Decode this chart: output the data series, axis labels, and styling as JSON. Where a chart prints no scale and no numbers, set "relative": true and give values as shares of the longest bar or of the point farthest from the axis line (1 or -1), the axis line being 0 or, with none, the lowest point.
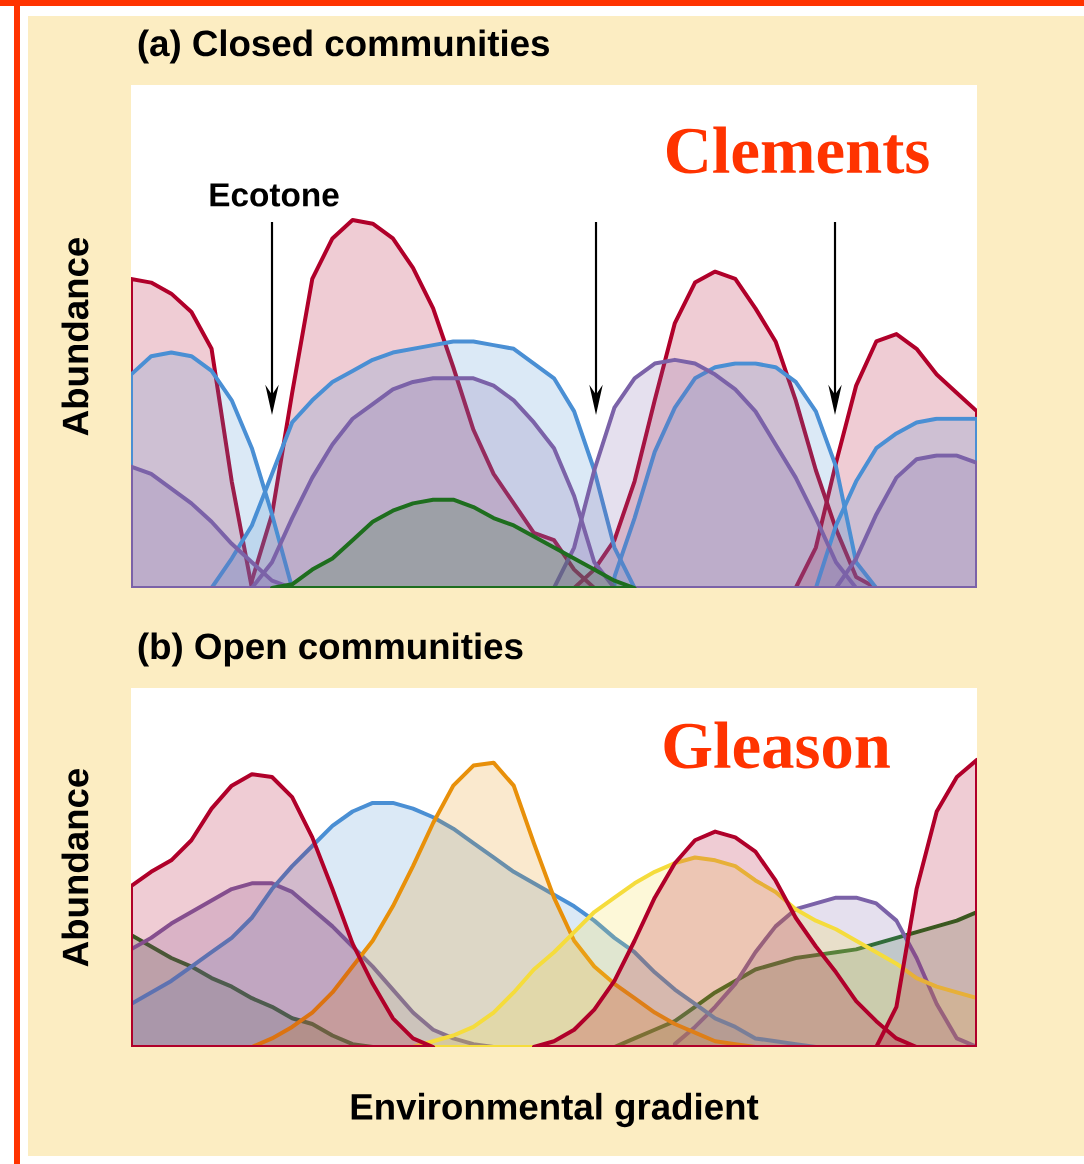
{
  "chart_data": [
    {
      "type": "area",
      "title": "(a) Closed communities",
      "ylabel": "Abundance",
      "relative": true,
      "annotations": [
        "Clements",
        "Ecotone"
      ],
      "categories": [
        null,
        null,
        null,
        null,
        null,
        null,
        null,
        null,
        null,
        null,
        null,
        null,
        null,
        null,
        null,
        null,
        null,
        null,
        null,
        null,
        null,
        null,
        null,
        null,
        null,
        null,
        null,
        null,
        null,
        null,
        null,
        null,
        null,
        null,
        null,
        null,
        null,
        null,
        null,
        null,
        null,
        null,
        null
      ],
      "series": [
        {
          "color": "#b0002a",
          "values": [
            0.84,
            0.83,
            0.8,
            0.75,
            0.65,
            0.29,
            0,
            null,
            null,
            null,
            null,
            null,
            null,
            null,
            null,
            null,
            null,
            null,
            null,
            null,
            null,
            null,
            null,
            null,
            null,
            null,
            null,
            null,
            null,
            null,
            null,
            null,
            null,
            null,
            null,
            null,
            null,
            null,
            null,
            null,
            null,
            null,
            null
          ]
        },
        {
          "color": "#b0002a",
          "values": [
            null,
            null,
            null,
            null,
            null,
            null,
            0.02,
            0.2,
            0.53,
            0.84,
            0.95,
            1,
            0.99,
            0.95,
            0.87,
            0.76,
            0.6,
            0.43,
            0.31,
            0.23,
            0.15,
            0.13,
            0.05,
            0,
            null,
            null,
            null,
            null,
            null,
            null,
            null,
            null,
            null,
            null,
            null,
            null,
            null,
            null,
            null,
            null,
            null,
            null,
            null
          ]
        },
        {
          "color": "#b0002a",
          "values": [
            null,
            null,
            null,
            null,
            null,
            null,
            null,
            null,
            null,
            null,
            null,
            null,
            null,
            null,
            null,
            null,
            null,
            null,
            null,
            null,
            null,
            null,
            0,
            0.05,
            0.13,
            0.29,
            0.51,
            0.72,
            0.83,
            0.86,
            0.84,
            0.76,
            0.67,
            0.51,
            0.32,
            0.16,
            0.03,
            0,
            null,
            null,
            null,
            null,
            null
          ]
        },
        {
          "color": "#b0002a",
          "values": [
            null,
            null,
            null,
            null,
            null,
            null,
            null,
            null,
            null,
            null,
            null,
            null,
            null,
            null,
            null,
            null,
            null,
            null,
            null,
            null,
            null,
            null,
            null,
            null,
            null,
            null,
            null,
            null,
            null,
            null,
            null,
            null,
            null,
            0,
            0.11,
            0.34,
            0.55,
            0.67,
            0.69,
            0.65,
            0.58,
            0.53,
            0.48
          ]
        },
        {
          "color": "#4a8fd4",
          "values": [
            0.58,
            0.63,
            0.64,
            0.63,
            0.59,
            0.51,
            0.38,
            0.2,
            0,
            null,
            null,
            null,
            null,
            null,
            null,
            null,
            null,
            null,
            null,
            null,
            null,
            null,
            null,
            null,
            null,
            null,
            null,
            null,
            null,
            null,
            null,
            null,
            null,
            null,
            null,
            null,
            null,
            null,
            null,
            null,
            null,
            null,
            null
          ]
        },
        {
          "color": "#4a8fd4",
          "values": [
            null,
            null,
            null,
            null,
            0,
            0.08,
            0.17,
            0.31,
            0.45,
            0.51,
            0.56,
            0.59,
            0.62,
            0.64,
            0.65,
            0.66,
            0.67,
            0.67,
            0.66,
            0.65,
            0.61,
            0.57,
            0.48,
            0.32,
            0.11,
            0,
            null,
            null,
            null,
            null,
            null,
            null,
            null,
            null,
            null,
            null,
            null,
            null,
            null,
            null,
            null,
            null,
            null
          ]
        },
        {
          "color": "#4a8fd4",
          "values": [
            null,
            null,
            null,
            null,
            null,
            null,
            null,
            null,
            null,
            null,
            null,
            null,
            null,
            null,
            null,
            null,
            null,
            null,
            null,
            null,
            null,
            null,
            null,
            null,
            0.03,
            0.19,
            0.37,
            0.49,
            0.57,
            0.6,
            0.61,
            0.61,
            0.6,
            0.56,
            0.48,
            0.33,
            0.07,
            0,
            null,
            null,
            null,
            null,
            null
          ]
        },
        {
          "color": "#4a8fd4",
          "values": [
            null,
            null,
            null,
            null,
            null,
            null,
            null,
            null,
            null,
            null,
            null,
            null,
            null,
            null,
            null,
            null,
            null,
            null,
            null,
            null,
            null,
            null,
            null,
            null,
            null,
            null,
            null,
            null,
            null,
            null,
            null,
            null,
            null,
            null,
            0,
            0.17,
            0.29,
            0.38,
            0.42,
            0.45,
            0.46,
            0.46,
            0.46
          ]
        },
        {
          "color": "#7b62a8",
          "values": [
            0.33,
            0.31,
            0.27,
            0.23,
            0.18,
            0.12,
            0.07,
            0.02,
            0,
            null,
            null,
            null,
            null,
            null,
            null,
            null,
            null,
            null,
            null,
            null,
            null,
            null,
            null,
            null,
            null,
            null,
            null,
            null,
            null,
            null,
            null,
            null,
            null,
            null,
            null,
            null,
            null,
            null,
            null,
            null,
            null,
            null,
            null
          ]
        },
        {
          "color": "#7b62a8",
          "values": [
            null,
            null,
            null,
            null,
            null,
            null,
            0,
            0.07,
            0.19,
            0.3,
            0.39,
            0.46,
            0.5,
            0.54,
            0.56,
            0.57,
            0.57,
            0.57,
            0.55,
            0.51,
            0.45,
            0.38,
            0.25,
            0.07,
            0,
            null,
            null,
            null,
            null,
            null,
            null,
            null,
            null,
            null,
            null,
            null,
            null,
            null,
            null,
            null,
            null,
            null,
            null
          ]
        },
        {
          "color": "#7b62a8",
          "values": [
            null,
            null,
            null,
            null,
            null,
            null,
            null,
            null,
            null,
            null,
            null,
            null,
            null,
            null,
            null,
            null,
            null,
            null,
            null,
            null,
            null,
            0,
            0.11,
            0.32,
            0.49,
            0.57,
            0.61,
            0.62,
            0.61,
            0.58,
            0.54,
            0.48,
            0.39,
            0.3,
            0.19,
            0.07,
            0,
            null,
            null,
            null,
            null,
            null,
            null
          ]
        },
        {
          "color": "#7b62a8",
          "values": [
            null,
            null,
            null,
            null,
            null,
            null,
            null,
            null,
            null,
            null,
            null,
            null,
            null,
            null,
            null,
            null,
            null,
            null,
            null,
            null,
            null,
            null,
            null,
            null,
            null,
            null,
            null,
            null,
            null,
            null,
            null,
            null,
            null,
            null,
            null,
            0,
            0.08,
            0.2,
            0.3,
            0.35,
            0.36,
            0.36,
            0.34
          ]
        },
        {
          "color": "#1e6e1e",
          "values": [
            null,
            null,
            null,
            null,
            null,
            null,
            null,
            0,
            0.01,
            0.05,
            0.08,
            0.13,
            0.18,
            0.21,
            0.23,
            0.24,
            0.24,
            0.22,
            0.19,
            0.17,
            0.14,
            0.11,
            0.08,
            0.05,
            0.02,
            0,
            null,
            null,
            null,
            null,
            null,
            null,
            null,
            null,
            null,
            null,
            null,
            null,
            null,
            null,
            null,
            null,
            null
          ]
        }
      ]
    },
    {
      "type": "area",
      "title": "(b) Open communities",
      "ylabel": "Abundance",
      "xlabel": "Environmental gradient",
      "relative": true,
      "annotations": [
        "Gleason"
      ],
      "categories": [
        null,
        null,
        null,
        null,
        null,
        null,
        null,
        null,
        null,
        null,
        null,
        null,
        null,
        null,
        null,
        null,
        null,
        null,
        null,
        null,
        null,
        null,
        null,
        null,
        null,
        null,
        null,
        null,
        null,
        null,
        null,
        null,
        null,
        null,
        null,
        null,
        null,
        null,
        null,
        null,
        null,
        null,
        null
      ],
      "series": [
        {
          "color": "#1e6e1e",
          "values": [
            0.39,
            0.35,
            0.31,
            0.28,
            0.24,
            0.21,
            0.17,
            0.14,
            0.1,
            0.08,
            0.04,
            0.01,
            0,
            null,
            null,
            null,
            null,
            null,
            null,
            null,
            null,
            null,
            null,
            null,
            null,
            null,
            null,
            null,
            null,
            null,
            null,
            null,
            null,
            null,
            null,
            null,
            null,
            null,
            null,
            null,
            null,
            null,
            null
          ]
        },
        {
          "color": "#1e6e1e",
          "values": [
            null,
            null,
            null,
            null,
            null,
            null,
            null,
            null,
            null,
            null,
            null,
            null,
            null,
            null,
            null,
            null,
            null,
            null,
            null,
            null,
            null,
            null,
            null,
            null,
            0,
            0.03,
            0.06,
            0.09,
            0.14,
            0.19,
            0.23,
            0.27,
            0.29,
            0.31,
            0.32,
            0.33,
            0.34,
            0.36,
            0.38,
            0.4,
            0.42,
            0.44,
            0.47
          ]
        },
        {
          "color": "#7b62a8",
          "values": [
            0.34,
            0.38,
            0.43,
            0.47,
            0.51,
            0.55,
            0.57,
            0.57,
            0.54,
            0.48,
            0.42,
            0.35,
            0.28,
            0.2,
            0.12,
            0.06,
            0.03,
            0.01,
            0,
            null,
            null,
            null,
            null,
            null,
            null,
            null,
            null,
            null,
            null,
            null,
            null,
            null,
            null,
            null,
            null,
            null,
            null,
            null,
            null,
            null,
            null,
            null,
            null
          ]
        },
        {
          "color": "#7b62a8",
          "values": [
            null,
            null,
            null,
            null,
            null,
            null,
            null,
            null,
            null,
            null,
            null,
            null,
            null,
            null,
            null,
            null,
            null,
            null,
            null,
            null,
            null,
            null,
            null,
            null,
            null,
            null,
            null,
            0.01,
            0.07,
            0.14,
            0.22,
            0.33,
            0.42,
            0.48,
            0.5,
            0.52,
            0.52,
            0.5,
            0.44,
            0.31,
            0.15,
            0.03,
            0
          ]
        },
        {
          "color": "#4a8fd4",
          "values": [
            0.15,
            0.19,
            0.23,
            0.28,
            0.33,
            0.38,
            0.45,
            0.55,
            0.63,
            0.7,
            0.77,
            0.82,
            0.85,
            0.85,
            0.83,
            0.8,
            0.76,
            0.71,
            0.66,
            0.61,
            0.57,
            0.53,
            0.49,
            0.44,
            0.38,
            0.33,
            0.26,
            0.2,
            0.15,
            0.1,
            0.07,
            0.03,
            0.02,
            0.01,
            0,
            null,
            null,
            null,
            null,
            null,
            null,
            null,
            null
          ]
        },
        {
          "color": "#e8900a",
          "values": [
            null,
            null,
            null,
            null,
            null,
            null,
            0,
            0.03,
            0.07,
            0.12,
            0.19,
            0.28,
            0.37,
            0.49,
            0.63,
            0.78,
            0.91,
            0.98,
            0.99,
            0.91,
            0.71,
            0.52,
            0.37,
            0.28,
            0.22,
            0.17,
            0.12,
            0.08,
            0.05,
            0.02,
            0.01,
            0,
            null,
            null,
            null,
            null,
            null,
            null,
            null,
            null,
            null,
            null,
            null
          ]
        },
        {
          "color": "#f5dc3c",
          "values": [
            null,
            null,
            null,
            null,
            null,
            null,
            null,
            null,
            null,
            null,
            null,
            null,
            null,
            null,
            0,
            0.02,
            0.04,
            0.07,
            0.12,
            0.19,
            0.27,
            0.33,
            0.4,
            0.47,
            0.52,
            0.57,
            0.61,
            0.64,
            0.66,
            0.65,
            0.63,
            0.58,
            0.54,
            0.48,
            0.44,
            0.41,
            0.37,
            0.33,
            0.29,
            0.24,
            0.21,
            0.19,
            0.17
          ]
        },
        {
          "color": "#b0002a",
          "values": [
            0.56,
            0.61,
            0.65,
            0.72,
            0.83,
            0.91,
            0.95,
            0.94,
            0.87,
            0.73,
            0.55,
            0.36,
            0.22,
            0.1,
            0.03,
            0,
            null,
            null,
            null,
            null,
            null,
            null,
            null,
            null,
            null,
            null,
            null,
            null,
            null,
            null,
            null,
            null,
            null,
            null,
            null,
            null,
            null,
            null,
            null,
            null,
            null,
            null,
            null
          ]
        },
        {
          "color": "#b0002a",
          "values": [
            null,
            null,
            null,
            null,
            null,
            null,
            null,
            null,
            null,
            null,
            null,
            null,
            null,
            null,
            null,
            null,
            null,
            null,
            null,
            null,
            0,
            0.02,
            0.06,
            0.13,
            0.23,
            0.37,
            0.52,
            0.64,
            0.72,
            0.75,
            0.73,
            0.68,
            0.58,
            0.45,
            0.35,
            0.26,
            0.16,
            0.09,
            0.03,
            0,
            null,
            null,
            null
          ]
        },
        {
          "color": "#b0002a",
          "values": [
            null,
            null,
            null,
            null,
            null,
            null,
            null,
            null,
            null,
            null,
            null,
            null,
            null,
            null,
            null,
            null,
            null,
            null,
            null,
            null,
            null,
            null,
            null,
            null,
            null,
            null,
            null,
            null,
            null,
            null,
            null,
            null,
            null,
            null,
            null,
            null,
            null,
            0,
            0.14,
            0.55,
            0.82,
            0.94,
            1
          ]
        }
      ]
    }
  ]
}
